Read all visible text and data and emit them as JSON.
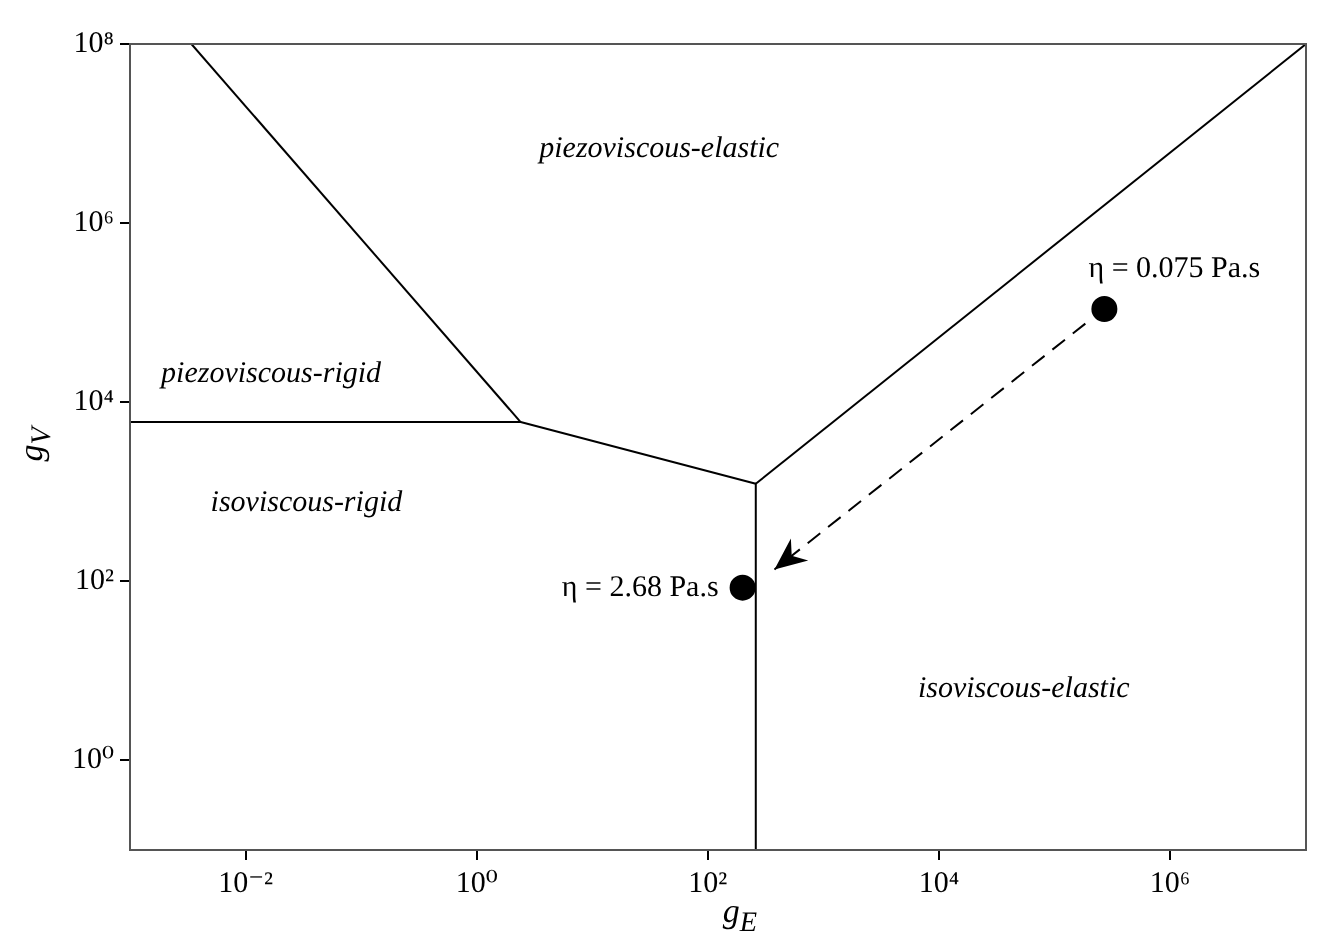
{
  "chart_data": {
    "type": "line",
    "xlabel": "g$_{E}$",
    "ylabel": "g$_{V}$",
    "log": "xy",
    "grid": false,
    "legend": false,
    "marker": "none",
    "xlim": [
      0.001,
      15000000
    ],
    "ylim": [
      0.1,
      100000000
    ],
    "xticks": [
      {
        "value": 0.01,
        "label": "10⁻²"
      },
      {
        "value": 1,
        "label": "10⁰"
      },
      {
        "value": 100,
        "label": "10²"
      },
      {
        "value": 10000,
        "label": "10⁴"
      },
      {
        "value": 1000000,
        "label": "10⁶"
      }
    ],
    "yticks": [
      {
        "value": 1,
        "label": "10⁰"
      },
      {
        "value": 100,
        "label": "10²"
      },
      {
        "value": 10000,
        "label": "10⁴"
      },
      {
        "value": 1000000,
        "label": "10⁶"
      },
      {
        "value": 100000000,
        "label": "10⁸"
      }
    ],
    "series": [
      {
        "color": "#000000",
        "x": [
          0.0034,
          2.4
        ],
        "values": [
          100000000,
          6000
        ]
      },
      {
        "color": "#000000",
        "x": [
          0.001,
          2.4,
          260
        ],
        "values": [
          6000,
          6000,
          1230
        ]
      },
      {
        "color": "#000000",
        "x": [
          260,
          260
        ],
        "values": [
          1230,
          0.1
        ]
      },
      {
        "color": "#000000",
        "x": [
          260,
          15000000
        ],
        "values": [
          1230,
          100000000
        ]
      },
      {
        "type": "scatter",
        "color": "#000000",
        "marker": "circle",
        "x": [
          200,
          270000
        ],
        "values": [
          85,
          110000
        ]
      }
    ],
    "annotations": [
      "piezoviscous-elastic",
      "piezoviscous-rigid",
      "isoviscous-rigid",
      "isoviscous-elastic",
      {
        "text": "η = 0.075 Pa.s",
        "x": 270000,
        "y": 110000
      },
      {
        "text": "η = 2.68 Pa.s",
        "x": 200,
        "y": 85
      }
    ]
  }
}
